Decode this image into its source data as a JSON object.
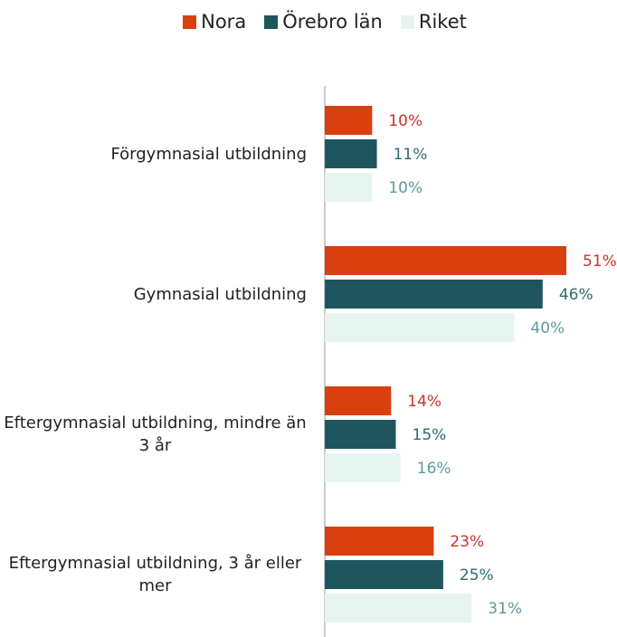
{
  "chart_data": {
    "type": "bar",
    "orientation": "horizontal",
    "categories": [
      "Förgymnasial utbildning",
      "Gymnasial utbildning",
      "Eftergymnasial utbildning, mindre än 3 år",
      "Eftergymnasial utbildning, 3 år eller mer"
    ],
    "series": [
      {
        "name": "Nora",
        "color": "#d9400f",
        "label_color": "#c8352a",
        "values": [
          10,
          51,
          14,
          23
        ],
        "value_labels": [
          "10%",
          "51%",
          "14%",
          "23%"
        ]
      },
      {
        "name": "Örebro län",
        "color": "#1f565e",
        "label_color": "#2e6b70",
        "values": [
          11,
          46,
          15,
          25
        ],
        "value_labels": [
          "11%",
          "46%",
          "15%",
          "25%"
        ]
      },
      {
        "name": "Riket",
        "color": "#e6f4f0",
        "label_color": "#5f9a9a",
        "values": [
          10,
          40,
          16,
          31
        ],
        "value_labels": [
          "10%",
          "40%",
          "16%",
          "31%"
        ]
      }
    ],
    "legend": "top"
  }
}
